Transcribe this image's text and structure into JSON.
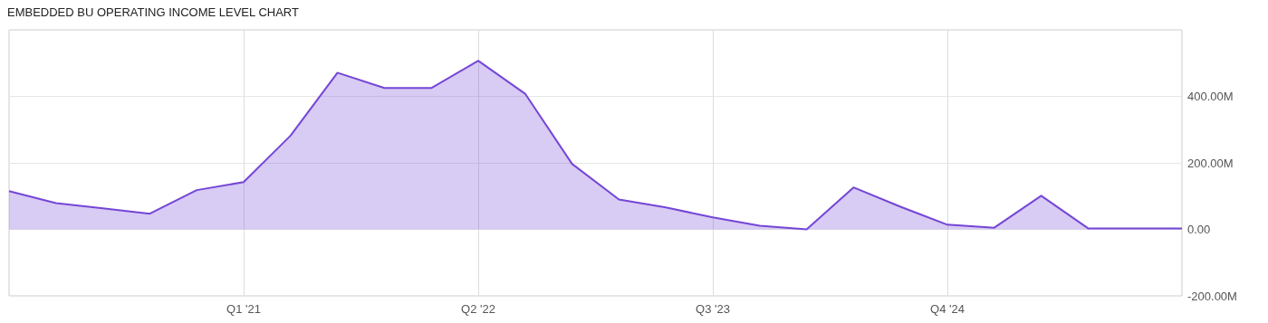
{
  "chart_data": {
    "type": "area",
    "title": "EMBEDDED BU OPERATING INCOME LEVEL CHART",
    "categories": [
      null,
      null,
      null,
      null,
      null,
      "Q1 '21",
      null,
      null,
      null,
      null,
      "Q2 '22",
      null,
      null,
      null,
      null,
      "Q3 '23",
      null,
      null,
      null,
      null,
      "Q4 '24",
      null,
      null,
      null,
      null,
      null
    ],
    "series": [
      {
        "color": "#7446d6",
        "values": [
          115,
          79,
          63,
          47,
          118,
          142,
          282,
          471,
          425,
          425,
          507,
          408,
          197,
          90,
          66,
          36,
          11,
          0,
          126,
          68,
          14,
          5,
          101,
          3,
          3,
          3
        ]
      }
    ],
    "ylim": [
      -200,
      600
    ],
    "yticks": [
      {
        "value": -200,
        "label": "-200.00M"
      },
      {
        "value": 0,
        "label": "0.00"
      },
      {
        "value": 200,
        "label": "200.00M"
      },
      {
        "value": 400,
        "label": "400.00M"
      },
      {
        "value": 600,
        "label": null
      }
    ],
    "grid": true,
    "marker": "none"
  }
}
